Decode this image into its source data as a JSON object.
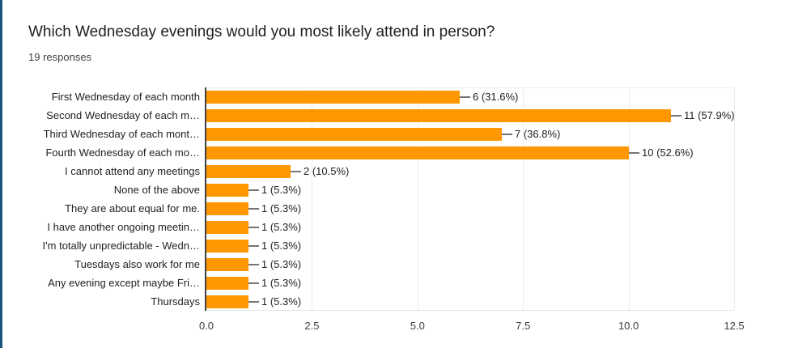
{
  "header": {
    "title": "Which Wednesday evenings would you most likely attend in person?",
    "subtitle": "19 responses"
  },
  "chart_data": {
    "type": "bar",
    "orientation": "horizontal",
    "title": "Which Wednesday evenings would you most likely attend in person?",
    "subtitle": "19 responses",
    "categories": [
      "First Wednesday of each month",
      "Second Wednesday of each m…",
      "Third Wednesday of each mont…",
      "Fourth Wednesday of each mo…",
      "I cannot attend any meetings",
      "None of the above",
      "They are about equal for me.",
      "I have another ongoing meetin…",
      "I'm totally unpredictable - Wedn…",
      "Tuesdays also work for me",
      "Any evening except maybe Fri…",
      "Thursdays"
    ],
    "values": [
      6,
      11,
      7,
      10,
      2,
      1,
      1,
      1,
      1,
      1,
      1,
      1
    ],
    "value_labels": [
      "6 (31.6%)",
      "11 (57.9%)",
      "7 (36.8%)",
      "10 (52.6%)",
      "2 (10.5%)",
      "1 (5.3%)",
      "1 (5.3%)",
      "1 (5.3%)",
      "1 (5.3%)",
      "1 (5.3%)",
      "1 (5.3%)",
      "1 (5.3%)"
    ],
    "x_ticks": [
      "0.0",
      "2.5",
      "5.0",
      "7.5",
      "10.0",
      "12.5"
    ],
    "xlim": [
      0,
      12.5
    ],
    "xlabel": "",
    "ylabel": "",
    "grid": true,
    "legend": "none",
    "bar_color": "#ff9800",
    "accent_color": "#17537d"
  }
}
